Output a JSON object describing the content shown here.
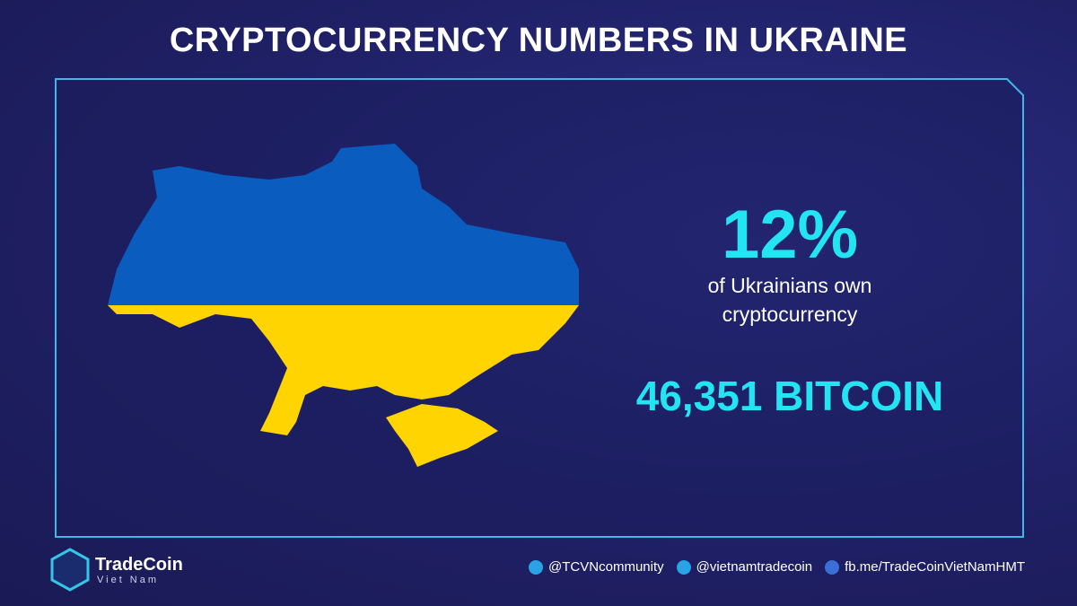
{
  "header": {
    "title": "CRYPTOCURRENCY NUMBERS IN UKRAINE"
  },
  "stats": [
    {
      "value": "12%",
      "caption": "of Ukrainians own cryptocurrency"
    },
    {
      "value": "46,351 BITCOIN"
    }
  ],
  "footer": {
    "brand": "TradeCoin",
    "brand_sub": "Viet Nam",
    "links": [
      "@TCVNcommunity",
      "@vietnamtradecoin",
      "fb.me/TradeCoinVietNamHMT"
    ]
  }
}
